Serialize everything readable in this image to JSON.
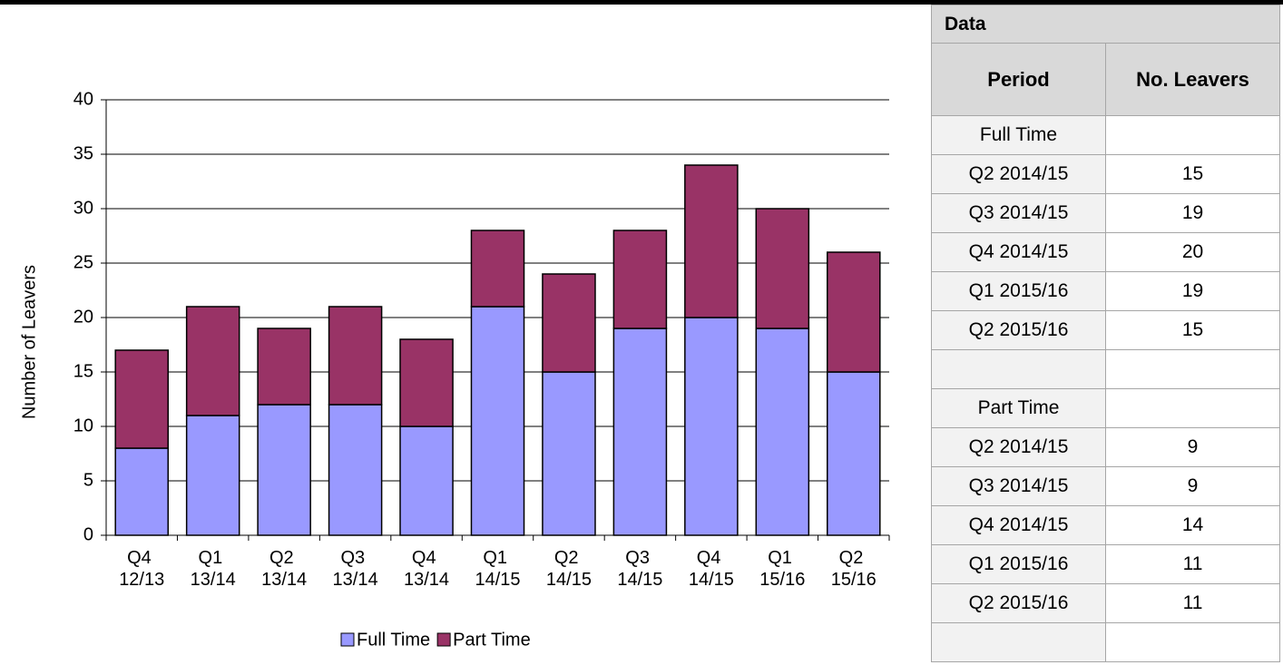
{
  "chart_data": {
    "type": "stacked-bar",
    "y_label": "Number of Leavers",
    "categories": [
      "Q4 12/13",
      "Q1 13/14",
      "Q2 13/14",
      "Q3 13/14",
      "Q4 13/14",
      "Q1 14/15",
      "Q2 14/15",
      "Q3 14/15",
      "Q4 14/15",
      "Q1 15/16",
      "Q2 15/16"
    ],
    "series": [
      {
        "name": "Full Time",
        "color": "#9999ff",
        "values": [
          8,
          11,
          12,
          12,
          10,
          21,
          15,
          19,
          20,
          19,
          15
        ]
      },
      {
        "name": "Part Time",
        "color": "#993366",
        "values": [
          9,
          10,
          7,
          9,
          8,
          7,
          9,
          9,
          14,
          11,
          11
        ]
      }
    ],
    "ylim": [
      0,
      40
    ],
    "yticks": [
      0,
      5,
      10,
      15,
      20,
      25,
      30,
      35,
      40
    ],
    "grid": true,
    "legend": "bottom"
  },
  "table": {
    "title": "Data",
    "columns": [
      "Period",
      "No. Leavers"
    ],
    "rows": [
      [
        "Full Time"
      ],
      [
        "Q2 2014/15",
        15
      ],
      [
        "Q3 2014/15",
        19
      ],
      [
        "Q4 2014/15",
        20
      ],
      [
        "Q1 2015/16",
        19
      ],
      [
        "Q2 2015/16",
        15
      ],
      [],
      [
        "Part Time"
      ],
      [
        "Q2 2014/15",
        9
      ],
      [
        "Q3 2014/15",
        9
      ],
      [
        "Q4 2014/15",
        14
      ],
      [
        "Q1 2015/16",
        11
      ],
      [
        "Q2 2015/16",
        11
      ],
      []
    ]
  }
}
